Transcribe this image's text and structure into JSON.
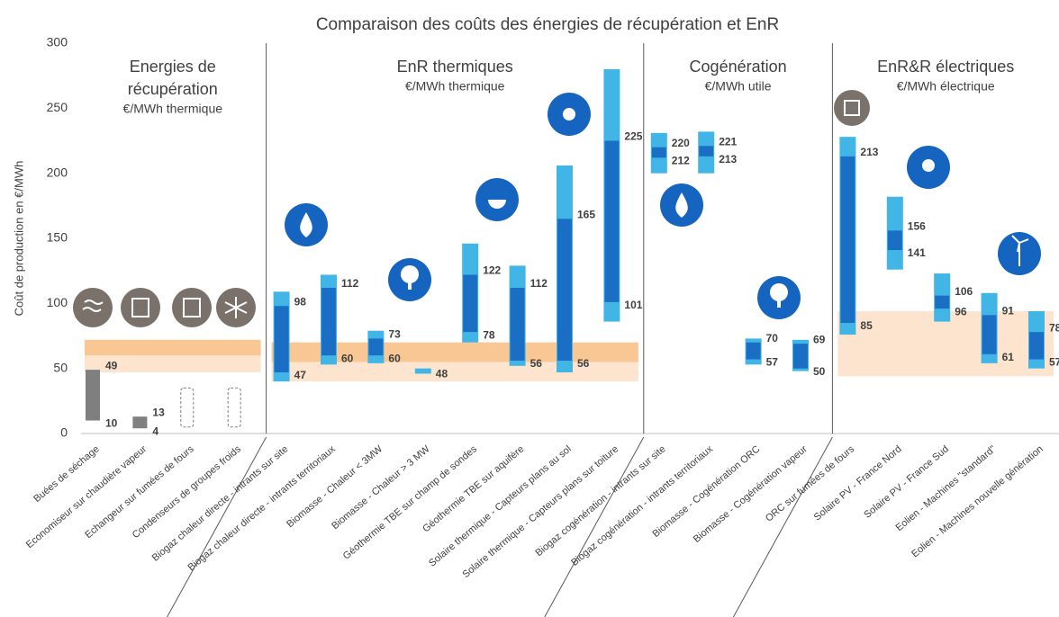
{
  "chart_data": {
    "type": "range_bar",
    "title": "Comparaison des coûts des énergies de récupération et EnR",
    "ylabel": "Coût de production en €/MWh",
    "ylim": [
      0,
      300
    ],
    "yticks": [
      0,
      50,
      100,
      150,
      200,
      250,
      300
    ],
    "grid": false,
    "outer_color": "#41b6e6",
    "inner_color": "#1a6fc4",
    "groups": [
      {
        "title": [
          "Energies de",
          "récupération"
        ],
        "subtitle": "€/MWh thermique",
        "color": "#7f7f7f",
        "band": [
          47,
          72
        ],
        "band_core": [
          60,
          72
        ],
        "categories": [
          "Buées de séchage",
          "Economiseur sur chaudière vapeur",
          "Echangeur sur fumées de fours",
          "Condenseurs de groupes froids"
        ],
        "min": [
          null,
          null,
          null,
          null
        ],
        "max": [
          null,
          null,
          null,
          null
        ],
        "low": [
          10,
          4,
          null,
          null
        ],
        "high": [
          49,
          13,
          null,
          null
        ]
      },
      {
        "title": [
          "EnR thermiques"
        ],
        "subtitle": "€/MWh thermique",
        "band": [
          40,
          70
        ],
        "band_core": [
          55,
          70
        ],
        "categories": [
          "Biogaz chaleur directe - intrants sur site",
          "Biogaz chaleur directe - intrants territoriaux",
          "Biomasse - Chaleur < 3MW",
          "Biomasse - Chaleur > 3 MW",
          "Géothermie TBE sur champ de sondes",
          "Géothermie TBE sur aquifère",
          "Solaire thermique - Capteurs plans au sol",
          "Solaire thermique - Capteurs plans sur toiture"
        ],
        "min": [
          40,
          53,
          54,
          46,
          70,
          52,
          47,
          86
        ],
        "max": [
          109,
          122,
          79,
          50,
          146,
          129,
          206,
          280
        ],
        "low": [
          47,
          60,
          60,
          48,
          78,
          56,
          56,
          101
        ],
        "high": [
          98,
          112,
          73,
          null,
          122,
          112,
          165,
          225
        ]
      },
      {
        "title": [
          "Cogénération"
        ],
        "subtitle": "€/MWh utile",
        "categories": [
          "Biogaz cogénération - intrants sur site",
          "Biogaz cogénération - intrants territoriaux",
          "Biomasse - Cogénération ORC",
          "Biomasse - Cogénération vapeur"
        ],
        "min": [
          200,
          200,
          53,
          48
        ],
        "max": [
          231,
          232,
          73,
          72
        ],
        "low": [
          212,
          213,
          57,
          50
        ],
        "high": [
          220,
          221,
          70,
          69
        ]
      },
      {
        "title": [
          "EnR&R électriques"
        ],
        "subtitle": "€/MWh électrique",
        "band": [
          44,
          94
        ],
        "categories": [
          "ORC sur fumées de fours",
          "Solaire PV - France Nord",
          "Solaire PV - France Sud",
          "Eolien - Machines \"standard\"",
          "Eolien - Machines nouvelle génération"
        ],
        "min": [
          76,
          126,
          86,
          54,
          50
        ],
        "max": [
          228,
          182,
          123,
          108,
          94
        ],
        "low": [
          85,
          141,
          96,
          61,
          57
        ],
        "high": [
          213,
          156,
          106,
          91,
          78
        ]
      }
    ]
  }
}
